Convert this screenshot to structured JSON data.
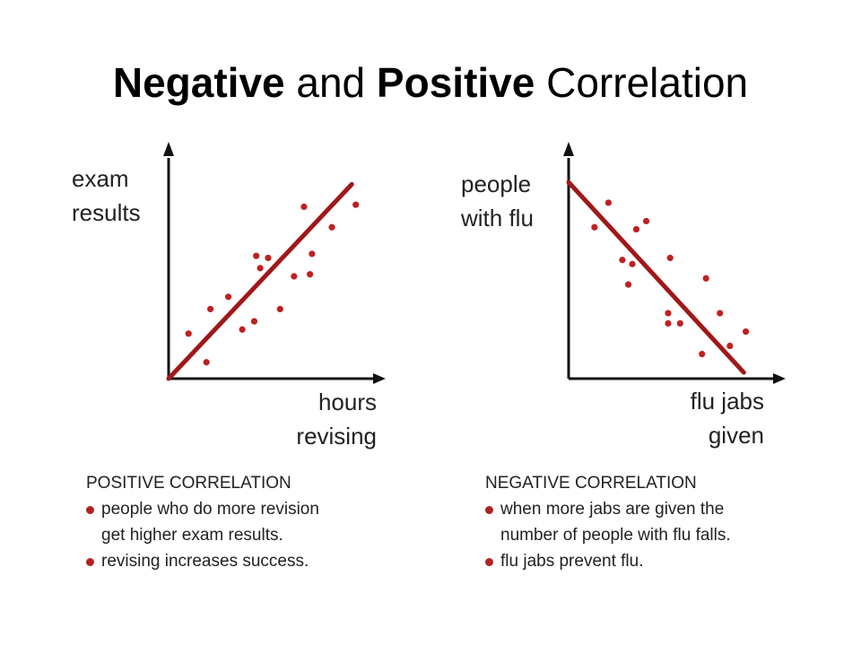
{
  "title": {
    "part1": "Negative",
    "part2": " and ",
    "part3": "Positive",
    "part4": " Correlation"
  },
  "colors": {
    "trend": "#a01818",
    "points": "#c02020",
    "axes": "#111111",
    "bullet": "#b22222"
  },
  "left_caption": {
    "heading": "POSITIVE CORRELATION",
    "items": [
      [
        "people who do more revision",
        "get higher exam results."
      ],
      [
        "revising increases success."
      ]
    ]
  },
  "right_caption": {
    "heading": "NEGATIVE CORRELATION",
    "items": [
      [
        "when more jabs are given the",
        "number of people with flu falls."
      ],
      [
        "flu jabs prevent flu."
      ]
    ]
  },
  "chart_data": [
    {
      "type": "scatter",
      "title": "",
      "xlabel": [
        "hours",
        "revising"
      ],
      "ylabel": [
        "exam",
        "results"
      ],
      "xlim": [
        0,
        10
      ],
      "ylim": [
        0,
        10
      ],
      "trend": {
        "from": [
          0,
          0
        ],
        "to": [
          9.2,
          9.5
        ]
      },
      "points": [
        [
          1.0,
          2.2
        ],
        [
          2.1,
          3.4
        ],
        [
          3.0,
          4.0
        ],
        [
          1.9,
          0.8
        ],
        [
          3.7,
          2.4
        ],
        [
          4.3,
          2.8
        ],
        [
          4.4,
          6.0
        ],
        [
          4.6,
          5.4
        ],
        [
          5.0,
          5.9
        ],
        [
          5.6,
          3.4
        ],
        [
          6.3,
          5.0
        ],
        [
          6.8,
          8.4
        ],
        [
          7.2,
          6.1
        ],
        [
          7.1,
          5.1
        ],
        [
          8.2,
          7.4
        ],
        [
          9.4,
          8.5
        ]
      ],
      "grid": false
    },
    {
      "type": "scatter",
      "title": "",
      "xlabel": [
        "flu jabs",
        "given"
      ],
      "ylabel": [
        "people",
        "with flu"
      ],
      "xlim": [
        0,
        10
      ],
      "ylim": [
        0,
        10
      ],
      "trend": {
        "from": [
          0,
          9.6
        ],
        "to": [
          8.8,
          0.3
        ]
      },
      "points": [
        [
          1.3,
          7.4
        ],
        [
          2.0,
          8.6
        ],
        [
          2.7,
          5.8
        ],
        [
          3.0,
          4.6
        ],
        [
          3.2,
          5.6
        ],
        [
          3.4,
          7.3
        ],
        [
          3.9,
          7.7
        ],
        [
          5.1,
          5.9
        ],
        [
          5.0,
          3.2
        ],
        [
          5.0,
          2.7
        ],
        [
          5.6,
          2.7
        ],
        [
          6.7,
          1.2
        ],
        [
          6.9,
          4.9
        ],
        [
          7.6,
          3.2
        ],
        [
          8.1,
          1.6
        ],
        [
          8.9,
          2.3
        ]
      ],
      "grid": false
    }
  ]
}
